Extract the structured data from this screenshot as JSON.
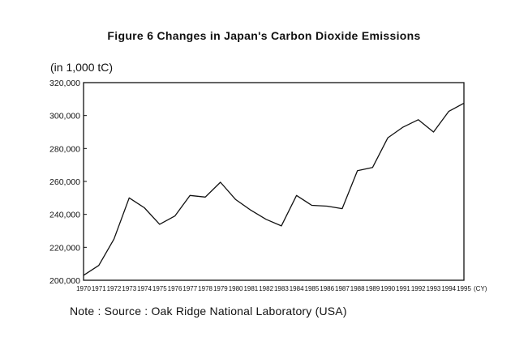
{
  "chart_data": {
    "type": "line",
    "title": "Figure 6 Changes in Japan's Carbon Dioxide Emissions",
    "ylabel": "(in 1,000 tC)",
    "x_unit_label": "(CY)",
    "note": "Note : Source : Oak Ridge National Laboratory (USA)",
    "ylim": [
      200000,
      320000
    ],
    "yticks": [
      200000,
      220000,
      240000,
      260000,
      280000,
      300000,
      320000
    ],
    "ytick_labels": [
      "200,000",
      "220,000",
      "240,000",
      "260,000",
      "280,000",
      "300,000",
      "320,000"
    ],
    "x": [
      1970,
      1971,
      1972,
      1973,
      1974,
      1975,
      1976,
      1977,
      1978,
      1979,
      1980,
      1981,
      1982,
      1983,
      1984,
      1985,
      1986,
      1987,
      1988,
      1989,
      1990,
      1991,
      1992,
      1993,
      1994,
      1995
    ],
    "series": [
      {
        "values": [
          203000,
          209000,
          225000,
          250000,
          244000,
          234000,
          239000,
          251500,
          250500,
          259500,
          249000,
          242500,
          237000,
          233000,
          251500,
          245500,
          245000,
          243500,
          266500,
          268500,
          286500,
          293000,
          297500,
          290000,
          302500,
          307500
        ]
      }
    ],
    "grid": false,
    "colors": {
      "line": "#111111",
      "axis": "#111111"
    }
  }
}
